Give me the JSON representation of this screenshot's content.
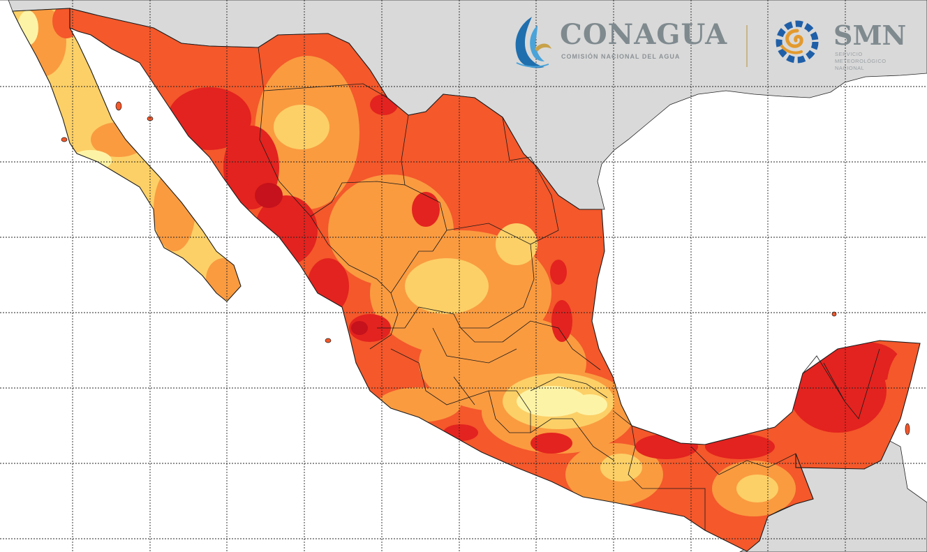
{
  "map": {
    "region": "Mexico",
    "type": "choropleth heat map",
    "palette": [
      "#fdf3a6",
      "#fcd067",
      "#fa9b40",
      "#f4582b",
      "#e3231f",
      "#c5121c"
    ],
    "land_outside_color": "#d9d9d9",
    "sea_color": "#ffffff",
    "graticule": "dotted"
  },
  "logos": {
    "conagua": {
      "name": "CONAGUA",
      "subtitle": "COMISIÓN NACIONAL DEL AGUA",
      "colors": [
        "#1f6fae",
        "#4aa3d9",
        "#c8a24a"
      ]
    },
    "smn": {
      "name": "SMN",
      "subtitle_lines": [
        "SERVICIO",
        "METEOROLÓGICO",
        "NACIONAL"
      ],
      "colors": [
        "#1f5fa8",
        "#e39a2d"
      ]
    }
  }
}
